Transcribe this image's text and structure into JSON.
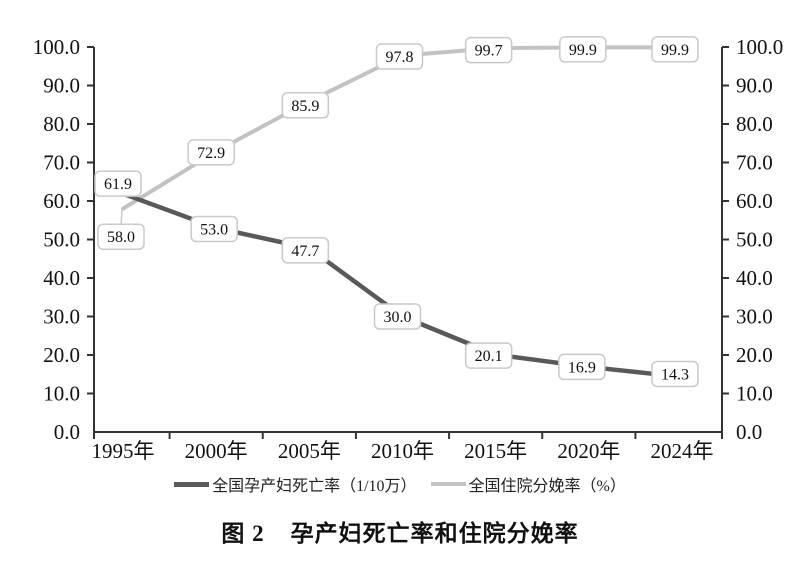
{
  "caption": {
    "figure_label": "图 2",
    "figure_title": "孕产妇死亡率和住院分娩率"
  },
  "chart_data": {
    "type": "line",
    "title": "图 2 孕产妇死亡率和住院分娩率",
    "categories": [
      "1995年",
      "2000年",
      "2005年",
      "2010年",
      "2015年",
      "2020年",
      "2024年"
    ],
    "series": [
      {
        "name": "全国孕产妇死亡率（1/10万）",
        "values": [
          61.9,
          53.0,
          47.7,
          30.0,
          20.1,
          16.9,
          14.3
        ],
        "color": "#595959",
        "label_offsets": [
          [
            -5,
            -10
          ],
          [
            -2,
            1
          ],
          [
            -4,
            2
          ],
          [
            -5,
            0
          ],
          [
            -7,
            1
          ],
          [
            -7,
            0
          ],
          [
            -7,
            -3
          ]
        ]
      },
      {
        "name": "全国住院分娩率（%）",
        "values": [
          58.0,
          72.9,
          85.9,
          97.8,
          99.7,
          99.9,
          99.9
        ],
        "color": "#c2c2c2",
        "label_offsets": [
          [
            -2,
            28
          ],
          [
            -5,
            1
          ],
          [
            -4,
            4
          ],
          [
            -3,
            1
          ],
          [
            -7,
            2
          ],
          [
            -6,
            2
          ],
          [
            -7,
            2
          ]
        ],
        "leader_points": [
          0
        ]
      }
    ],
    "y_axis": {
      "min": 0,
      "max": 100,
      "step": 10,
      "left_labels": true,
      "right_labels": true,
      "tick_format": "one_decimal"
    },
    "data_labels": true,
    "grid": false,
    "legend_position": "bottom",
    "axis_color": "#333333",
    "label_box": {
      "fill": "#ffffff",
      "border": "#c9c9c9"
    }
  }
}
